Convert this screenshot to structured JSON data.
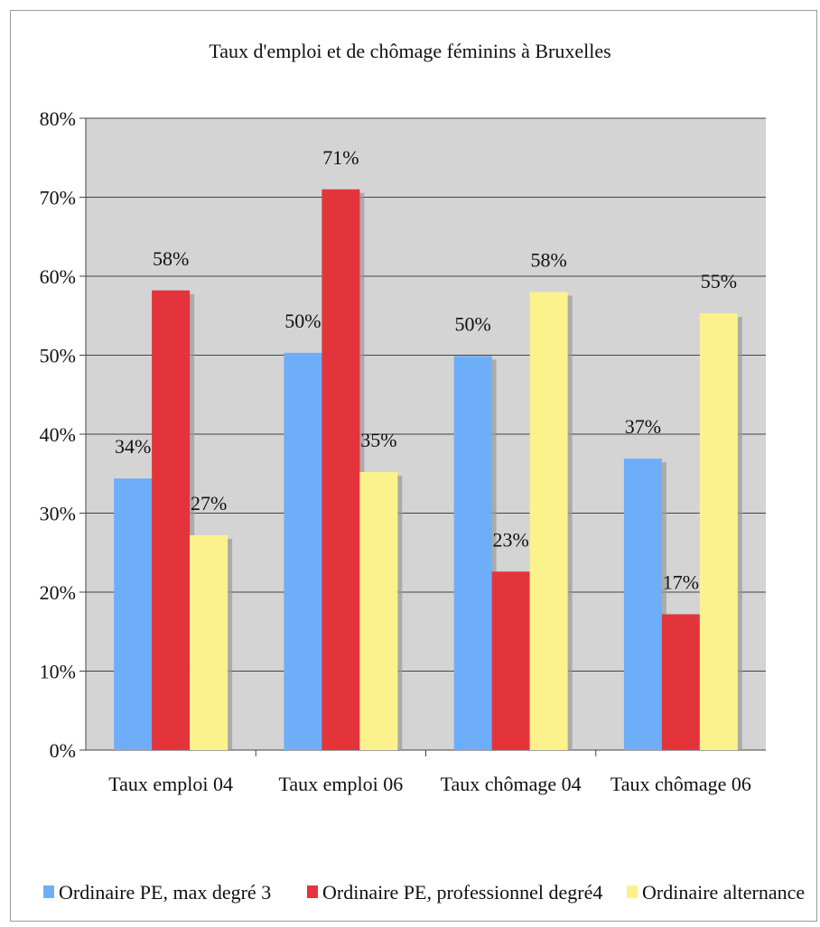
{
  "chart_data": {
    "type": "bar",
    "title": "Taux d'emploi et de chômage féminins à Bruxelles",
    "categories": [
      "Taux emploi  04",
      "Taux emploi  06",
      "Taux chômage 04",
      "Taux chômage 06"
    ],
    "series": [
      {
        "name": "Ordinaire PE, max degré 3",
        "color": "#6eaef8",
        "values": [
          34.4,
          50.3,
          49.9,
          36.9
        ],
        "labels": [
          "34%",
          "50%",
          "50%",
          "37%"
        ]
      },
      {
        "name": "Ordinaire PE, professionnel degré4",
        "color": "#e3343c",
        "values": [
          58.2,
          71.0,
          22.6,
          17.2
        ],
        "labels": [
          "58%",
          "71%",
          "23%",
          "17%"
        ]
      },
      {
        "name": "Ordinaire alternance",
        "color": "#fbf28c",
        "values": [
          27.2,
          35.2,
          58.0,
          55.3
        ],
        "labels": [
          "27%",
          "35%",
          "58%",
          "55%"
        ]
      }
    ],
    "ylim": [
      0,
      80
    ],
    "yticks": [
      0,
      10,
      20,
      30,
      40,
      50,
      60,
      70,
      80
    ],
    "ytick_labels": [
      "0%",
      "10%",
      "20%",
      "30%",
      "40%",
      "50%",
      "60%",
      "70%",
      "80%"
    ],
    "xlabel": "",
    "ylabel": "",
    "grid": true,
    "plot_background": "#d4d4d4",
    "legend_position": "bottom"
  }
}
